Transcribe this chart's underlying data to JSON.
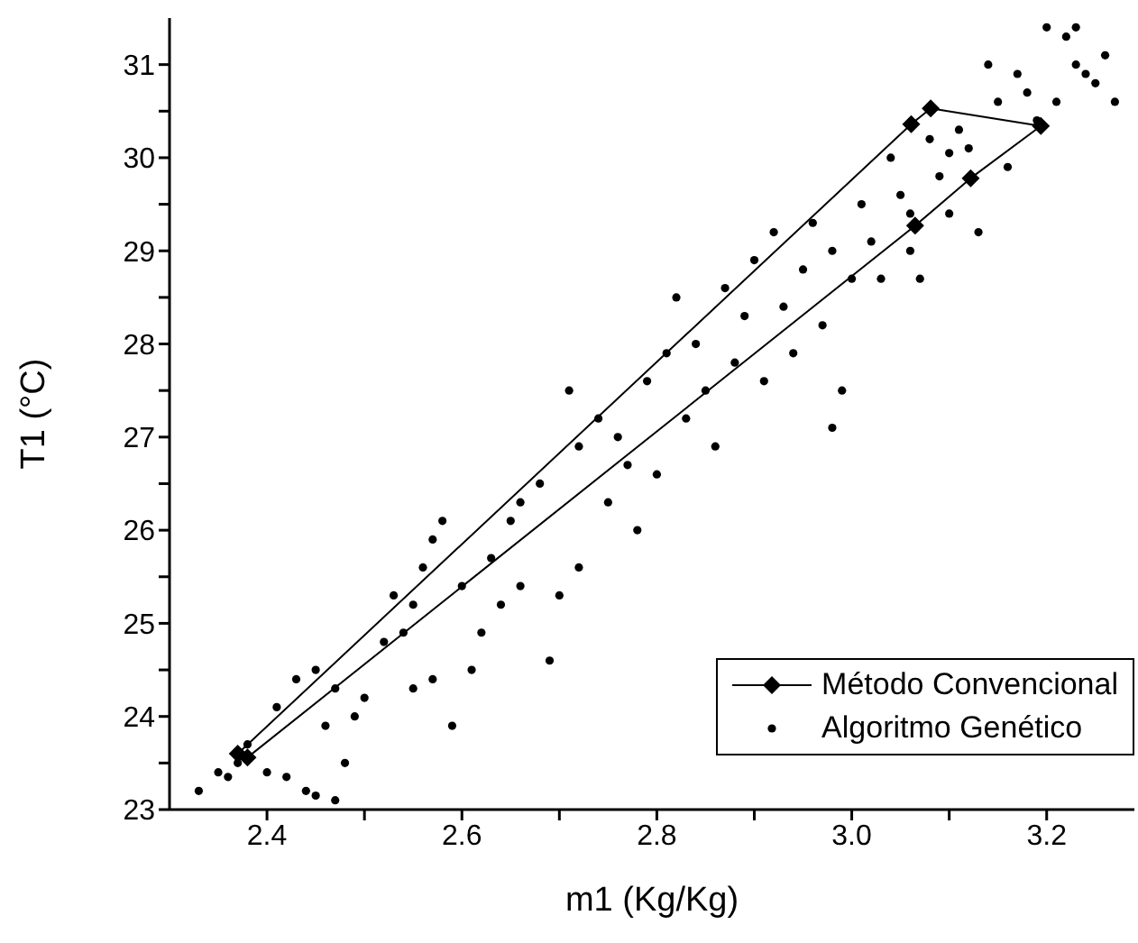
{
  "chart_data": {
    "type": "scatter",
    "xlabel": "m1 (Kg/Kg)",
    "ylabel": "T1 (°C)",
    "xlim": [
      2.3,
      3.29
    ],
    "ylim": [
      23,
      31.5
    ],
    "xticks": [
      2.4,
      {
        "value": 2.5,
        "label": null
      },
      2.6,
      {
        "value": 2.7,
        "label": null
      },
      2.8,
      {
        "value": 2.9,
        "label": null
      },
      {
        "value": 3.0,
        "label": "3.0"
      },
      {
        "value": 3.1,
        "label": null
      },
      3.2
    ],
    "yticks": [
      23,
      {
        "value": 23.5,
        "label": null
      },
      24,
      {
        "value": 24.5,
        "label": null
      },
      25,
      {
        "value": 25.5,
        "label": null
      },
      26,
      {
        "value": 26.5,
        "label": null
      },
      27,
      {
        "value": 27.5,
        "label": null
      },
      28,
      {
        "value": 28.5,
        "label": null
      },
      29,
      {
        "value": 29.5,
        "label": null
      },
      30,
      {
        "value": 30.5,
        "label": null
      },
      31
    ],
    "grid": false,
    "legend": "bottom right",
    "series": [
      {
        "name": "Método Convencional",
        "type": "line",
        "marker": "diamond",
        "line_style": "solid",
        "color": "#000000",
        "x": [
          2.37,
          3.061,
          3.081,
          3.194,
          3.122,
          3.065,
          2.38
        ],
        "values": [
          23.6,
          30.36,
          30.53,
          30.34,
          29.78,
          29.27,
          23.56
        ]
      },
      {
        "name": "Algoritmo Genético",
        "marker": "circle",
        "color": "#000000",
        "x": [
          2.33,
          2.35,
          2.37,
          2.38,
          2.36,
          2.4,
          2.42,
          2.44,
          2.45,
          2.47,
          2.41,
          2.43,
          2.45,
          2.46,
          2.48,
          2.49,
          2.5,
          2.47,
          2.52,
          2.53,
          2.55,
          2.54,
          2.56,
          2.57,
          2.58,
          2.55,
          2.57,
          2.59,
          2.61,
          2.62,
          2.6,
          2.63,
          2.65,
          2.66,
          2.68,
          2.64,
          2.66,
          2.7,
          2.69,
          2.72,
          2.72,
          2.74,
          2.71,
          2.75,
          2.77,
          2.78,
          2.8,
          2.76,
          2.79,
          2.81,
          2.82,
          2.84,
          2.83,
          2.85,
          2.86,
          2.87,
          2.89,
          2.9,
          2.88,
          2.91,
          2.92,
          2.93,
          2.94,
          2.95,
          2.96,
          2.97,
          2.98,
          2.99,
          2.98,
          3.0,
          3.01,
          3.02,
          3.03,
          3.04,
          3.05,
          3.06,
          3.07,
          3.08,
          3.09,
          3.1,
          3.11,
          3.12,
          3.13,
          3.15,
          3.17,
          3.18,
          3.19,
          3.2,
          3.22,
          3.23,
          3.24,
          3.25,
          3.26,
          3.27,
          3.21,
          3.23,
          3.14,
          3.16,
          3.06,
          3.1
        ],
        "values": [
          23.2,
          23.4,
          23.5,
          23.7,
          23.35,
          23.4,
          23.35,
          23.2,
          23.15,
          23.1,
          24.1,
          24.4,
          24.5,
          23.9,
          23.5,
          24.0,
          24.2,
          24.3,
          24.8,
          25.3,
          25.2,
          24.9,
          25.6,
          25.9,
          26.1,
          24.3,
          24.4,
          23.9,
          24.5,
          24.9,
          25.4,
          25.7,
          26.1,
          26.3,
          26.5,
          25.2,
          25.4,
          25.3,
          24.6,
          25.6,
          26.9,
          27.2,
          27.5,
          26.3,
          26.7,
          26.0,
          26.6,
          27.0,
          27.6,
          27.9,
          28.5,
          28.0,
          27.2,
          27.5,
          26.9,
          28.6,
          28.3,
          28.9,
          27.8,
          27.6,
          29.2,
          28.4,
          27.9,
          28.8,
          29.3,
          28.2,
          29.0,
          27.5,
          27.1,
          28.7,
          29.5,
          29.1,
          28.7,
          30.0,
          29.6,
          29.0,
          28.7,
          30.2,
          29.8,
          29.4,
          30.3,
          30.1,
          29.2,
          30.6,
          30.9,
          30.7,
          30.4,
          31.4,
          31.3,
          31.0,
          30.9,
          30.8,
          31.1,
          30.6,
          30.6,
          31.4,
          31.0,
          29.9,
          29.4,
          30.05
        ]
      }
    ]
  }
}
